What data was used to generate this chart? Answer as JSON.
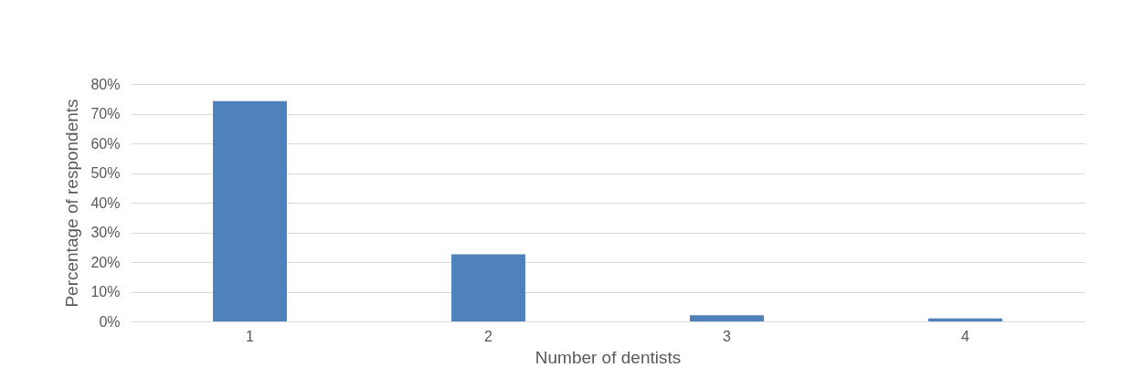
{
  "chart_data": {
    "type": "bar",
    "xlabel": "Number of dentists",
    "ylabel": "Percentage of respondents",
    "categories": [
      "1",
      "2",
      "3",
      "4"
    ],
    "values": [
      74.2,
      22.6,
      2.1,
      1.0
    ],
    "color": "#4f81bd",
    "ylim": [
      0,
      80
    ],
    "yticks": [
      {
        "value": 0,
        "label": "0%"
      },
      {
        "value": 10,
        "label": "10%"
      },
      {
        "value": 20,
        "label": "20%"
      },
      {
        "value": 30,
        "label": "30%"
      },
      {
        "value": 40,
        "label": "40%"
      },
      {
        "value": 50,
        "label": "50%"
      },
      {
        "value": 60,
        "label": "60%"
      },
      {
        "value": 70,
        "label": "70%"
      },
      {
        "value": 80,
        "label": "80%"
      }
    ],
    "grid": "y"
  }
}
